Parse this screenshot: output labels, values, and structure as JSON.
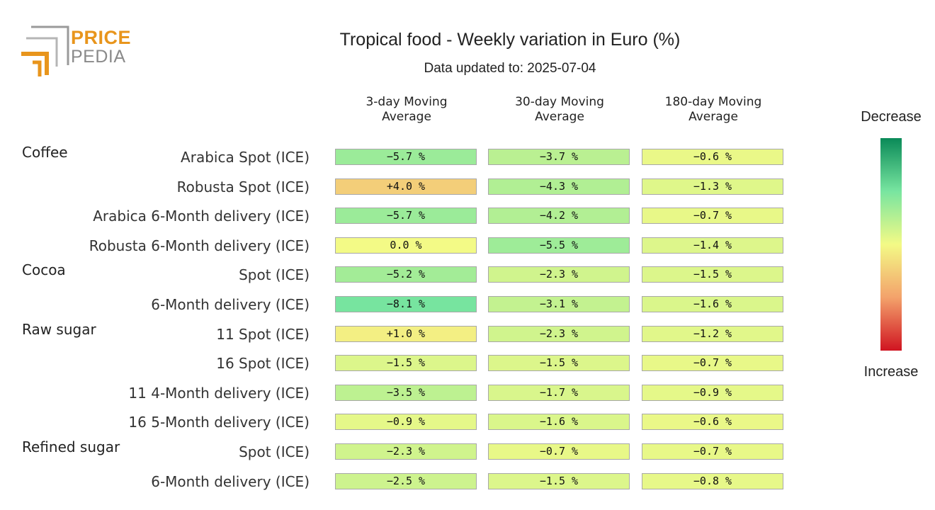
{
  "logo": {
    "price": "PRICE",
    "pedia": "PEDIA"
  },
  "chart_data": {
    "type": "table",
    "title": "Tropical food - Weekly variation in Euro (%)",
    "subtitle": "Data updated to: 2025-07-04",
    "columns": [
      "3-day Moving Average",
      "30-day Moving Average",
      "180-day Moving Average"
    ],
    "columns_lines": [
      [
        "3-day Moving",
        "Average"
      ],
      [
        "30-day Moving",
        "Average"
      ],
      [
        "180-day Moving",
        "Average"
      ]
    ],
    "value_suffix": " %",
    "groups": [
      {
        "name": "Coffee",
        "rows": [
          {
            "label": "Arabica Spot (ICE)",
            "values": [
              -5.7,
              -3.7,
              -0.6
            ]
          },
          {
            "label": "Robusta Spot (ICE)",
            "values": [
              4.0,
              -4.3,
              -1.3
            ]
          },
          {
            "label": "Arabica 6-Month delivery (ICE)",
            "values": [
              -5.7,
              -4.2,
              -0.7
            ]
          },
          {
            "label": "Robusta 6-Month delivery (ICE)",
            "values": [
              0.0,
              -5.5,
              -1.4
            ]
          }
        ]
      },
      {
        "name": "Cocoa",
        "rows": [
          {
            "label": "Spot (ICE)",
            "values": [
              -5.2,
              -2.3,
              -1.5
            ]
          },
          {
            "label": "6-Month delivery (ICE)",
            "values": [
              -8.1,
              -3.1,
              -1.6
            ]
          }
        ]
      },
      {
        "name": "Raw sugar",
        "rows": [
          {
            "label": "11 Spot (ICE)",
            "values": [
              1.0,
              -2.3,
              -1.2
            ]
          },
          {
            "label": "16 Spot (ICE)",
            "values": [
              -1.5,
              -1.5,
              -0.7
            ]
          },
          {
            "label": "11 4-Month delivery (ICE)",
            "values": [
              -3.5,
              -1.7,
              -0.9
            ]
          },
          {
            "label": "16 5-Month delivery (ICE)",
            "values": [
              -0.9,
              -1.6,
              -0.6
            ]
          }
        ]
      },
      {
        "name": "Refined sugar",
        "rows": [
          {
            "label": "Spot (ICE)",
            "values": [
              -2.3,
              -0.7,
              -0.7
            ]
          },
          {
            "label": "6-Month delivery (ICE)",
            "values": [
              -2.5,
              -1.5,
              -0.8
            ]
          }
        ]
      }
    ],
    "legend": {
      "top": "Decrease",
      "bottom": "Increase"
    },
    "colors": {
      "strong_decrease": "#0a8a58",
      "decrease": "#78e5a0",
      "neutral": "#f3fa86",
      "increase": "#f3a26b",
      "strong_increase": "#d01421"
    }
  }
}
